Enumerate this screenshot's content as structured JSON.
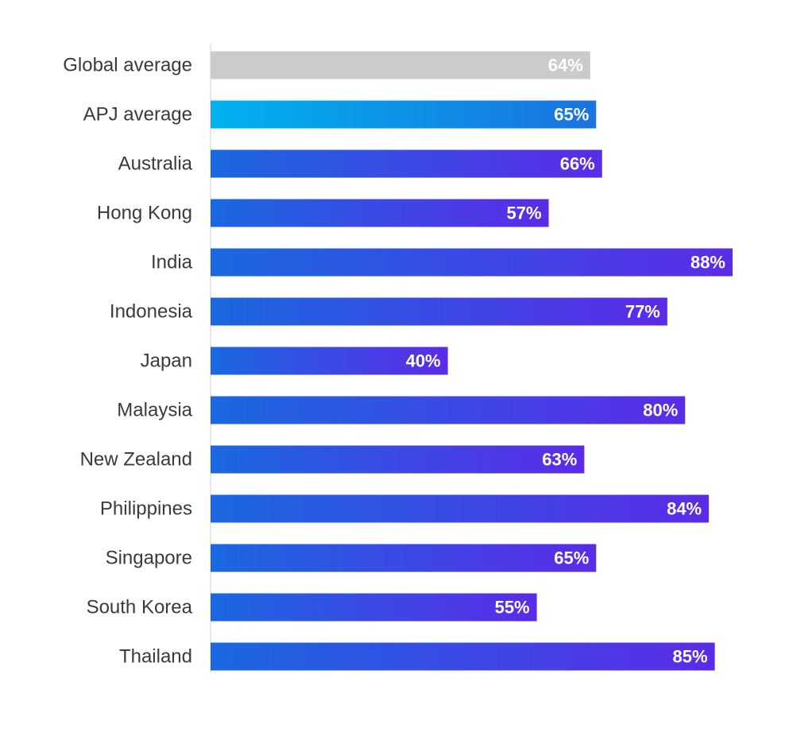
{
  "chart_data": {
    "type": "bar",
    "orientation": "horizontal",
    "categories": [
      "Global average",
      "APJ average",
      "Australia",
      "Hong Kong",
      "India",
      "Indonesia",
      "Japan",
      "Malaysia",
      "New Zealand",
      "Philippines",
      "Singapore",
      "South Korea",
      "Thailand"
    ],
    "values": [
      64,
      65,
      66,
      57,
      88,
      77,
      40,
      80,
      63,
      84,
      65,
      55,
      85
    ],
    "value_labels": [
      "64%",
      "65%",
      "66%",
      "57%",
      "88%",
      "77%",
      "40%",
      "80%",
      "63%",
      "84%",
      "65%",
      "55%",
      "85%"
    ],
    "unit": "%",
    "xlim": [
      0,
      88
    ],
    "grid": false,
    "legend": "none",
    "title": "",
    "xlabel": "",
    "ylabel": ""
  },
  "colors": {
    "global_bar": "#c9cbcd",
    "apj_bar_start": "#00b2ee",
    "apj_bar_end": "#1a73e0",
    "country_bar_start": "#1a68e0",
    "country_bar_end": "#5b2be8",
    "label_text": "#3a3a3a",
    "value_text": "#ffffff",
    "axis_line": "#d0d0d0"
  }
}
